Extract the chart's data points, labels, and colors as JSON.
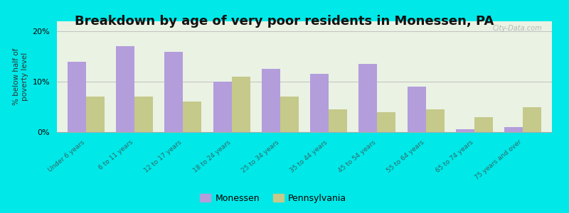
{
  "title": "Breakdown by age of very poor residents in Monessen, PA",
  "categories": [
    "Under 6 years",
    "6 to 11 years",
    "12 to 17 years",
    "18 to 24 years",
    "25 to 34 years",
    "35 to 44 years",
    "45 to 54 years",
    "55 to 64 years",
    "65 to 74 years",
    "75 years and over"
  ],
  "monessen": [
    14.0,
    17.0,
    16.0,
    10.0,
    12.5,
    11.5,
    13.5,
    9.0,
    0.5,
    1.0
  ],
  "pennsylvania": [
    7.0,
    7.0,
    6.0,
    11.0,
    7.0,
    4.5,
    4.0,
    4.5,
    3.0,
    5.0
  ],
  "monessen_color": "#b39ddb",
  "pennsylvania_color": "#c5c98a",
  "background_outer": "#00e8e8",
  "background_plot": "#eaf2e4",
  "ylabel": "% below half of\npoverty level",
  "ylim": [
    0,
    22
  ],
  "yticks": [
    0,
    10,
    20
  ],
  "ytick_labels": [
    "0%",
    "10%",
    "20%"
  ],
  "grid_color": "#bbbbbb",
  "title_fontsize": 13,
  "bar_width": 0.38,
  "legend_labels": [
    "Monessen",
    "Pennsylvania"
  ],
  "watermark": "City-Data.com"
}
